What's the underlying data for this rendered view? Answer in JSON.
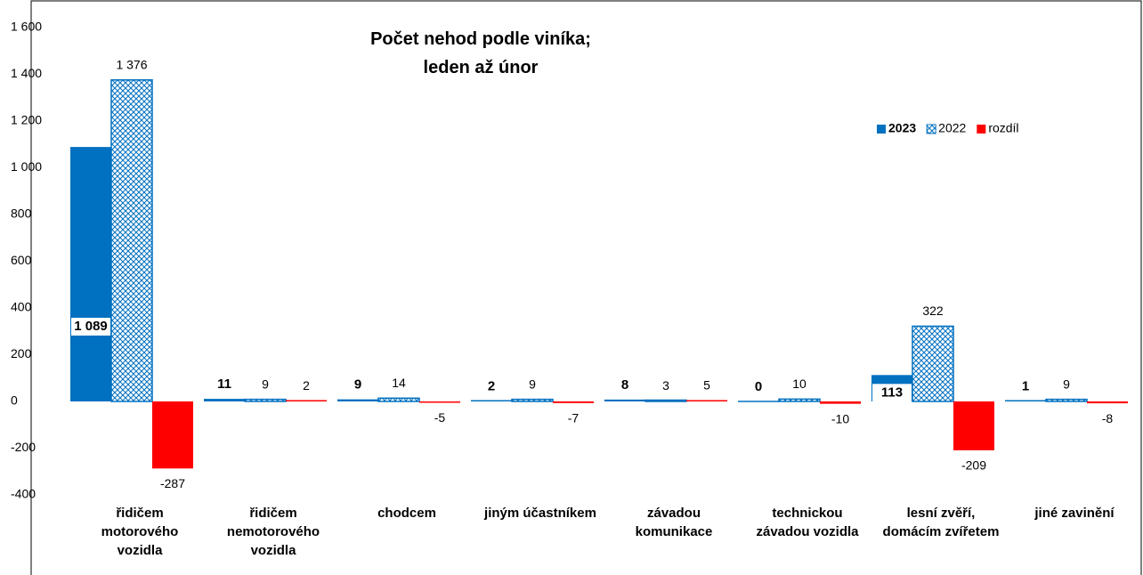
{
  "chart_data": {
    "type": "bar",
    "title": "Počet nehod podle viníka; leden až únor",
    "categories": [
      "řidičem motorového vozidla",
      "řidičem nemotorového vozidla",
      "chodcem",
      "jiným účastníkem",
      "závadou komunikace",
      "technickou závadou vozidla",
      "lesní zvěří, domácím zvířetem",
      "jiné zavinění"
    ],
    "series": [
      {
        "name": "2023",
        "color": "#0070c0",
        "values": [
          1089,
          11,
          9,
          2,
          8,
          0,
          113,
          1
        ],
        "value_labels": [
          "1 089",
          "11",
          "9",
          "2",
          "8",
          "0",
          "113",
          "1"
        ]
      },
      {
        "name": "2022",
        "color": "#0070c0",
        "hatch": true,
        "values": [
          1376,
          9,
          14,
          9,
          3,
          10,
          322,
          9
        ],
        "value_labels": [
          "1 376",
          "9",
          "14",
          "9",
          "3",
          "10",
          "322",
          "9"
        ]
      },
      {
        "name": "rozdíl",
        "color": "#ff0000",
        "values": [
          -287,
          2,
          -5,
          -7,
          5,
          -10,
          -209,
          -8
        ],
        "value_labels": [
          "-287",
          "2",
          "-5",
          "-7",
          "5",
          "-10",
          "-209",
          "-8"
        ]
      }
    ],
    "ylim": [
      -400,
      1600
    ],
    "yticks": [
      -400,
      -200,
      0,
      200,
      400,
      600,
      800,
      {
        "value": 1000,
        "label": "1 000"
      },
      {
        "value": 1200,
        "label": "1 200"
      },
      {
        "value": 1400,
        "label": "1 400"
      },
      {
        "value": 1600,
        "label": "1 600"
      }
    ],
    "grid": false,
    "legend": "upper right"
  }
}
